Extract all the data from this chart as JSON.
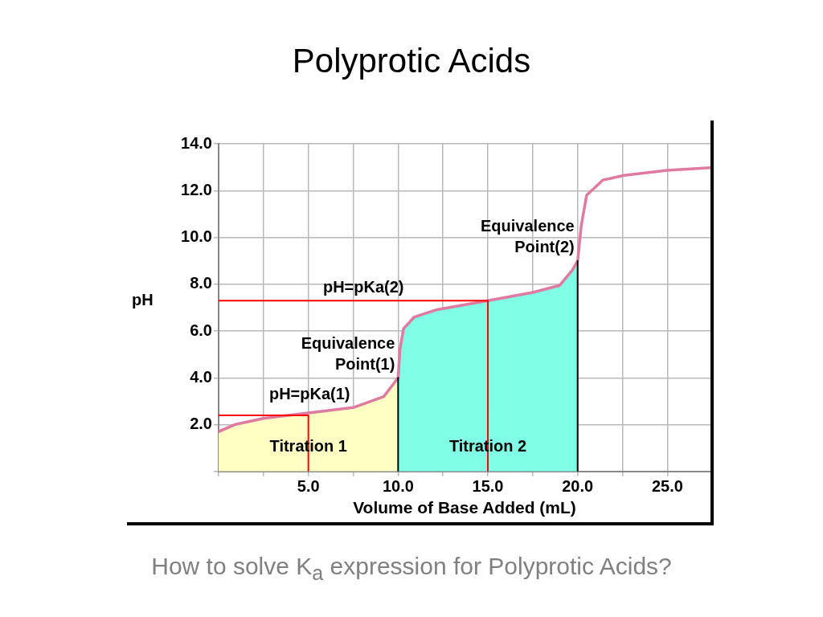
{
  "chart_data": {
    "type": "line",
    "title": "Polyprotic Acids",
    "xlabel": "Volume of Base Added (mL)",
    "ylabel": "pH",
    "xlim": [
      0,
      27.4
    ],
    "ylim": [
      0,
      14
    ],
    "xticks": [
      {
        "value": 0,
        "label": null
      },
      {
        "value": 2.5,
        "label": null
      },
      {
        "value": 5,
        "label": "5.0"
      },
      {
        "value": 7.5,
        "label": null
      },
      {
        "value": 10,
        "label": "10.0"
      },
      {
        "value": 12.5,
        "label": null
      },
      {
        "value": 15,
        "label": "15.0"
      },
      {
        "value": 17.5,
        "label": null
      },
      {
        "value": 20,
        "label": "20.0"
      },
      {
        "value": 22.5,
        "label": null
      },
      {
        "value": 25,
        "label": "25.0"
      }
    ],
    "yticks": [
      {
        "value": 0,
        "label": null
      },
      {
        "value": 2,
        "label": "2.0"
      },
      {
        "value": 4,
        "label": "4.0"
      },
      {
        "value": 6,
        "label": "6.0"
      },
      {
        "value": 8,
        "label": "8.0"
      },
      {
        "value": 10,
        "label": "10.0"
      },
      {
        "value": 12,
        "label": "12.0"
      },
      {
        "value": 14,
        "label": "14.0"
      }
    ],
    "grid": true,
    "series": [
      {
        "type": "area",
        "name": "Titration 1",
        "color": "#ffffc4",
        "x": [
          0,
          0.9,
          2.5,
          5,
          7.5,
          9.2,
          10
        ],
        "values": [
          1.7,
          2.0,
          2.27,
          2.5,
          2.73,
          3.2,
          4.0
        ]
      },
      {
        "type": "area",
        "name": "Titration 2",
        "color": "#80ffe6",
        "x": [
          10,
          10.1,
          10.3,
          10.9,
          12.1,
          15,
          17.5,
          19,
          19.7,
          20
        ],
        "values": [
          4.0,
          5.2,
          6.1,
          6.6,
          6.9,
          7.3,
          7.65,
          7.95,
          8.6,
          9.0
        ]
      },
      {
        "color": "#e07aa0",
        "x": [
          0,
          0.9,
          2.5,
          5,
          7.5,
          9.2,
          10,
          10.1,
          10.3,
          10.9,
          12.1,
          15,
          17.5,
          19,
          19.7,
          20,
          20.2,
          20.5,
          21.4,
          22.6,
          25,
          27.4
        ],
        "values": [
          1.7,
          2.0,
          2.27,
          2.5,
          2.73,
          3.2,
          4.0,
          5.2,
          6.1,
          6.6,
          6.9,
          7.3,
          7.65,
          7.95,
          8.6,
          9.0,
          10.5,
          11.8,
          12.45,
          12.65,
          12.87,
          12.98
        ]
      },
      {
        "color": "#ff0000",
        "x": [
          0,
          5,
          5
        ],
        "values": [
          2.4,
          2.4,
          0
        ]
      },
      {
        "color": "#ff0000",
        "x": [
          0,
          15,
          15
        ],
        "values": [
          7.3,
          7.3,
          0
        ]
      },
      {
        "color": "#000000",
        "x": [
          10,
          10
        ],
        "values": [
          0,
          4.0
        ]
      },
      {
        "color": "#000000",
        "x": [
          20,
          20
        ],
        "values": [
          0,
          9.0
        ]
      }
    ],
    "annotations": [
      {
        "text": "pH=pKa(1)",
        "x": 7.5,
        "y": 2.73
      },
      {
        "text": "pH=pKa(2)",
        "x": 10.5,
        "y": 7.3
      },
      {
        "text": "Equivalence Point(1)",
        "x": 10,
        "y": 4.0
      },
      {
        "text": "Equivalence Point(2)",
        "x": 20,
        "y": 9.0
      },
      "How to solve K$_{a}$ expression for Polyprotic Acids?"
    ]
  }
}
